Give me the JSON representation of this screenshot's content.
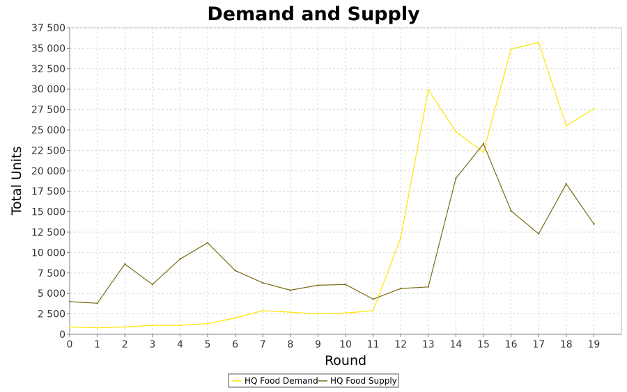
{
  "chart_data": {
    "type": "line",
    "title": "Demand and Supply",
    "xlabel": "Round",
    "ylabel": "Total Units",
    "x": [
      0,
      1,
      2,
      3,
      4,
      5,
      6,
      7,
      8,
      9,
      10,
      11,
      12,
      13,
      14,
      15,
      16,
      17,
      18,
      19
    ],
    "xlim": [
      0,
      20
    ],
    "ylim": [
      0,
      37500
    ],
    "y_ticks": [
      0,
      2500,
      5000,
      7500,
      10000,
      12500,
      15000,
      17500,
      20000,
      22500,
      25000,
      27500,
      30000,
      32500,
      35000,
      37500
    ],
    "y_tick_labels": [
      "0",
      "2 500",
      "5 000",
      "7 500",
      "10 000",
      "12 500",
      "15 000",
      "17 500",
      "20 000",
      "22 500",
      "25 000",
      "27 500",
      "30 000",
      "32 500",
      "35 000",
      "37 500"
    ],
    "x_tick_labels": [
      "0",
      "1",
      "2",
      "3",
      "4",
      "5",
      "6",
      "7",
      "8",
      "9",
      "10",
      "11",
      "12",
      "13",
      "14",
      "15",
      "16",
      "17",
      "18",
      "19"
    ],
    "grid": true,
    "legend_position": "bottom",
    "series": [
      {
        "name": "HQ Food Demand",
        "color": "#ffe400",
        "values": [
          900,
          800,
          900,
          1100,
          1100,
          1300,
          2000,
          2900,
          2700,
          2500,
          2600,
          2900,
          11800,
          29900,
          24800,
          22300,
          34900,
          35700,
          25500,
          27600
        ]
      },
      {
        "name": "HQ Food Supply",
        "color": "#7a6b14",
        "values": [
          4000,
          3800,
          8600,
          6100,
          9200,
          11200,
          7800,
          6300,
          5400,
          6000,
          6100,
          4300,
          5600,
          5800,
          19100,
          23300,
          15100,
          12300,
          18400,
          13500
        ]
      }
    ]
  }
}
